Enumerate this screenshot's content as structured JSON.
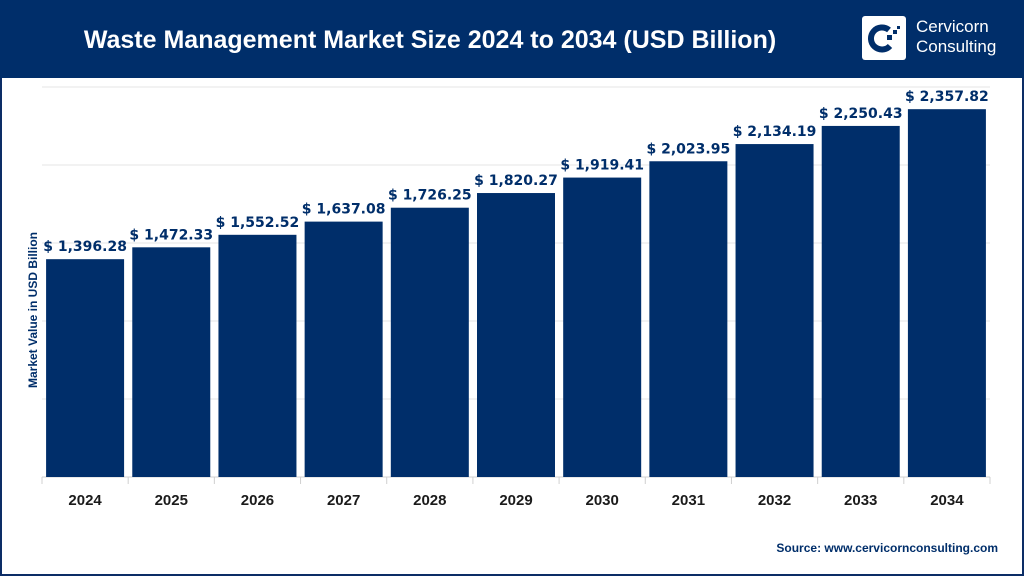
{
  "header": {
    "title": "Waste Management Market Size 2024 to 2034 (USD Billion)"
  },
  "logo": {
    "line1": "Cervicorn",
    "line2": "Consulting"
  },
  "source": "Source: www.cervicornconsulting.com",
  "colors": {
    "bar": "#002e6a",
    "header": "#002e6a",
    "grid": "#e6e6e6"
  },
  "chart_data": {
    "type": "bar",
    "title": "Waste Management Market Size 2024 to 2034 (USD Billion)",
    "xlabel": "",
    "ylabel": "Market Value in USD Billion",
    "categories": [
      "2024",
      "2025",
      "2026",
      "2027",
      "2028",
      "2029",
      "2030",
      "2031",
      "2032",
      "2033",
      "2034"
    ],
    "values": [
      1396.28,
      1472.33,
      1552.52,
      1637.08,
      1726.25,
      1820.27,
      1919.41,
      2023.95,
      2134.19,
      2250.43,
      2357.82
    ],
    "data_labels": [
      "$ 1,396.28",
      "$ 1,472.33",
      "$ 1,552.52",
      "$ 1,637.08",
      "$ 1,726.25",
      "$ 1,820.27",
      "$ 1,919.41",
      "$ 2,023.95",
      "$ 2,134.19",
      "$ 2,250.43",
      "$ 2,357.82"
    ],
    "ylim": [
      0,
      2500
    ],
    "grid_step": 500,
    "grid": true,
    "y_tick_labels_shown": false,
    "legend": "none"
  }
}
